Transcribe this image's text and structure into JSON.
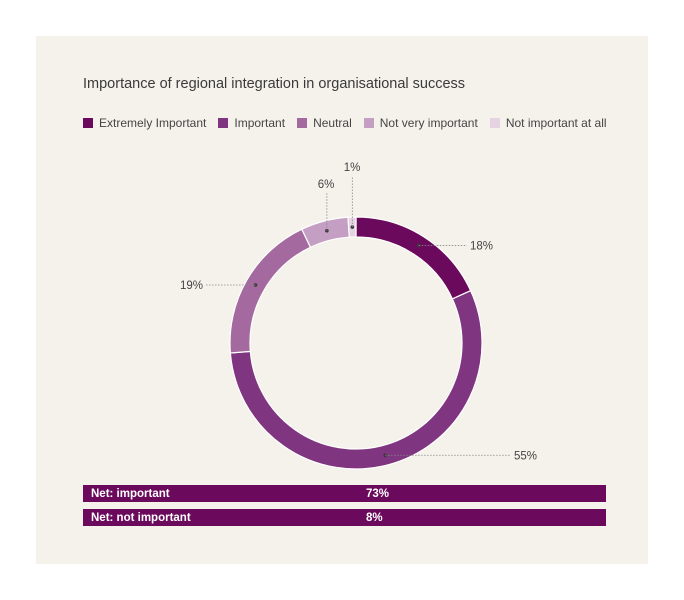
{
  "title": "Importance of regional integration in organisational success",
  "chart_data": {
    "type": "pie",
    "variant": "donut",
    "title": "Importance of regional integration in organisational success",
    "legend_position": "top",
    "categories": [
      "Extremely Important",
      "Important",
      "Neutral",
      "Not very important",
      "Not important at all"
    ],
    "values": [
      18,
      55,
      19,
      6,
      1
    ],
    "labels": [
      "18%",
      "55%",
      "19%",
      "6%",
      "1%"
    ],
    "colors": [
      "#6b0a5c",
      "#7f3580",
      "#a46aa0",
      "#c59ec4",
      "#e5d3e2"
    ]
  },
  "net": [
    {
      "label": "Net: important",
      "value": "73%"
    },
    {
      "label": "Net: not important",
      "value": "8%"
    }
  ]
}
